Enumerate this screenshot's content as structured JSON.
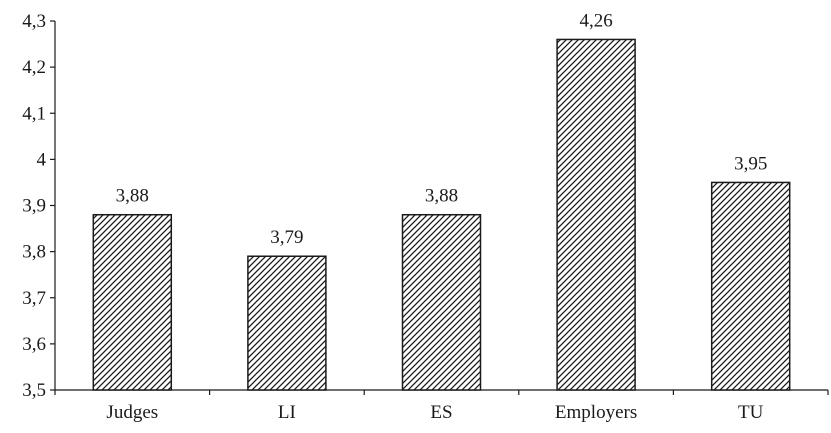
{
  "chart_data": {
    "type": "bar",
    "categories": [
      "Judges",
      "LI",
      "ES",
      "Employers",
      "TU"
    ],
    "values": [
      3.88,
      3.79,
      3.88,
      4.26,
      3.95
    ],
    "data_labels": [
      "3,88",
      "3,79",
      "3,88",
      "4,26",
      "3,95"
    ],
    "title": "",
    "xlabel": "",
    "ylabel": "",
    "ylim": [
      3.5,
      4.3
    ],
    "yticks": [
      3.5,
      3.6,
      3.7,
      3.8,
      3.9,
      4.0,
      4.1,
      4.2,
      4.3
    ],
    "ytick_labels": [
      "3,5",
      "3,6",
      "3,7",
      "3,8",
      "3,9",
      "4",
      "4,1",
      "4,2",
      "4,3"
    ],
    "bar_fill": "diagonal-hatch",
    "bar_color": "#1a1a1a",
    "grid": false,
    "legend": false
  }
}
